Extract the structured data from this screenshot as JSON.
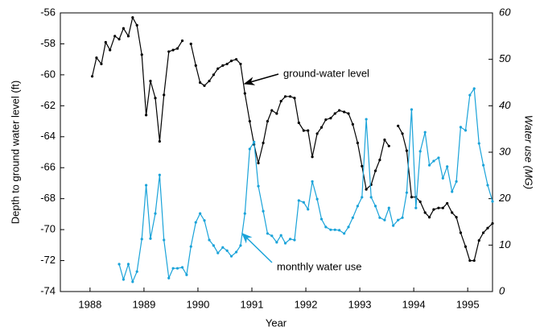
{
  "chart_data": {
    "type": "line",
    "x_label": "Year",
    "y_label": "Depth to ground water level (ft)",
    "y2_label": "Water use (MG)",
    "x": [
      1988.04,
      1988.12,
      1988.21,
      1988.29,
      1988.37,
      1988.46,
      1988.54,
      1988.62,
      1988.71,
      1988.79,
      1988.87,
      1988.96,
      1989.04,
      1989.12,
      1989.21,
      1989.29,
      1989.37,
      1989.46,
      1989.54,
      1989.62,
      1989.71,
      1989.79,
      1989.87,
      1989.96,
      1990.04,
      1990.12,
      1990.21,
      1990.29,
      1990.37,
      1990.46,
      1990.54,
      1990.62,
      1990.71,
      1990.79,
      1990.87,
      1990.96,
      1991.04,
      1991.12,
      1991.21,
      1991.29,
      1991.37,
      1991.46,
      1991.54,
      1991.62,
      1991.71,
      1991.79,
      1991.87,
      1991.96,
      1992.04,
      1992.12,
      1992.21,
      1992.29,
      1992.37,
      1992.46,
      1992.54,
      1992.62,
      1992.71,
      1992.79,
      1992.87,
      1992.96,
      1993.04,
      1993.12,
      1993.21,
      1993.29,
      1993.37,
      1993.46,
      1993.54,
      1993.62,
      1993.71,
      1993.79,
      1993.87,
      1993.96,
      1994.04,
      1994.12,
      1994.21,
      1994.29,
      1994.37,
      1994.46,
      1994.54,
      1994.62,
      1994.71,
      1994.79,
      1994.87,
      1994.96,
      1995.04,
      1995.12,
      1995.21,
      1995.29,
      1995.37,
      1995.46
    ],
    "series": [
      {
        "name": "ground-water level",
        "color": "#000000",
        "axis": "y",
        "values": [
          -60.1,
          -58.9,
          -59.3,
          -57.9,
          -58.4,
          -57.5,
          -57.7,
          -57.0,
          -57.5,
          -56.3,
          -56.8,
          -58.7,
          -62.6,
          -60.4,
          -61.5,
          -64.3,
          -61.3,
          -58.5,
          -58.4,
          -58.3,
          -57.8,
          null,
          -58.0,
          -59.4,
          -60.5,
          -60.7,
          -60.4,
          -60.0,
          -59.6,
          -59.4,
          -59.3,
          -59.1,
          -59.0,
          -59.3,
          -61.2,
          -63.0,
          -64.5,
          -65.7,
          -64.4,
          -63.0,
          -62.3,
          -62.5,
          -61.7,
          -61.4,
          -61.4,
          -61.5,
          -63.1,
          -63.6,
          -63.6,
          -65.3,
          -63.8,
          -63.4,
          -62.9,
          -62.8,
          -62.5,
          -62.3,
          -62.4,
          -62.5,
          -63.2,
          -64.4,
          -65.9,
          -67.4,
          -67.1,
          -66.2,
          -65.5,
          -64.2,
          -64.6,
          null,
          -63.3,
          -63.8,
          -64.9,
          -67.9,
          -67.9,
          -68.2,
          -68.9,
          -69.2,
          -68.7,
          -68.6,
          -68.6,
          -68.3,
          -68.9,
          -69.2,
          -70.2,
          -71.1,
          -72.0,
          -72.0,
          -70.7,
          -70.2,
          -69.9,
          -69.6
        ]
      },
      {
        "name": "monthly water use",
        "color": "#1aa3d9",
        "axis": "y2",
        "values": [
          null,
          null,
          null,
          null,
          null,
          null,
          5.9,
          2.6,
          5.9,
          2.1,
          4.3,
          11.3,
          22.9,
          11.4,
          16.8,
          25.1,
          11.1,
          2.9,
          5.0,
          5.0,
          5.2,
          3.6,
          9.7,
          14.9,
          16.8,
          15.3,
          11.1,
          9.9,
          8.3,
          9.5,
          8.8,
          7.6,
          8.5,
          9.9,
          16.8,
          30.7,
          32.2,
          22.7,
          17.3,
          12.5,
          12.0,
          10.6,
          12.1,
          10.4,
          11.3,
          11.1,
          19.6,
          19.2,
          17.7,
          23.7,
          19.9,
          15.6,
          13.9,
          13.3,
          13.3,
          13.2,
          12.5,
          13.9,
          15.9,
          18.4,
          20.3,
          37.1,
          20.3,
          18.4,
          15.9,
          15.4,
          18.0,
          14.2,
          15.4,
          15.9,
          21.3,
          39.2,
          18.0,
          30.2,
          34.3,
          27.2,
          28.1,
          28.8,
          24.4,
          26.9,
          21.5,
          23.7,
          35.4,
          34.7,
          42.3,
          43.7,
          31.9,
          27.2,
          22.9,
          19.4
        ]
      }
    ],
    "xlim": [
      1987.45,
      1995.46
    ],
    "xticks": [
      1988,
      1989,
      1990,
      1991,
      1992,
      1993,
      1994,
      1995
    ],
    "ylim": [
      -74,
      -56
    ],
    "yticks": [
      -74,
      -72,
      -70,
      -68,
      -66,
      -64,
      -62,
      -60,
      -58,
      -56
    ],
    "y2lim": [
      0,
      60
    ],
    "y2ticks": [
      0,
      10,
      20,
      30,
      40,
      50,
      60
    ]
  }
}
